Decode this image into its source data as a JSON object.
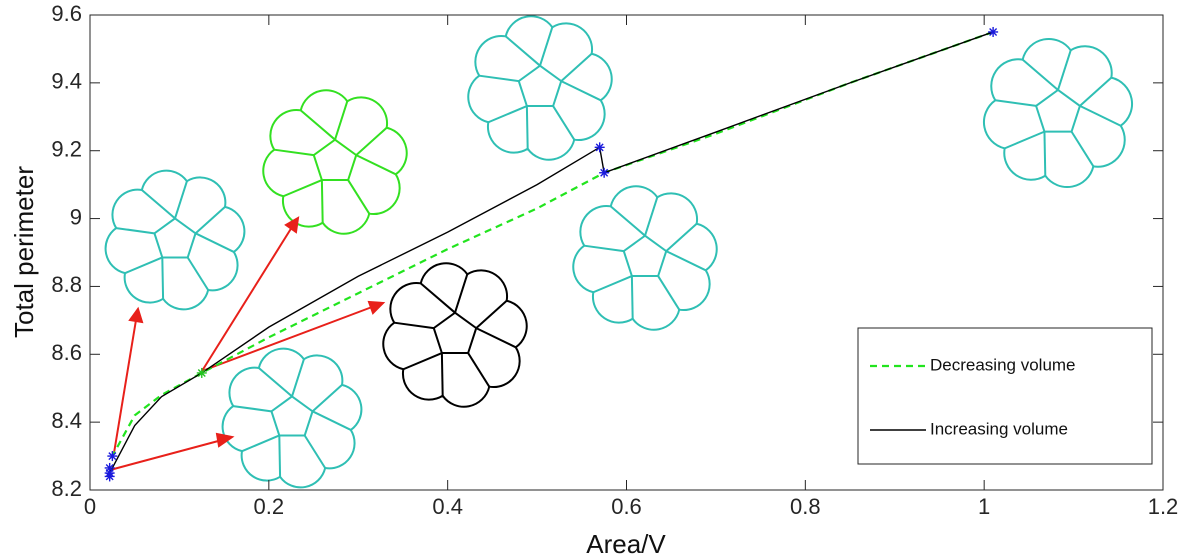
{
  "chart_data": {
    "type": "line",
    "x_label": "Area/V",
    "y_label": "Total perimeter",
    "xlim": [
      0,
      1.2
    ],
    "xticks": [
      0,
      0.2,
      0.4,
      0.6,
      0.8,
      1,
      1.2
    ],
    "ylim": [
      8.2,
      9.6
    ],
    "yticks": [
      8.2,
      8.4,
      8.6,
      8.8,
      9,
      9.2,
      9.4,
      9.6
    ],
    "grid": false,
    "legend": "lower right",
    "series": [
      {
        "name": "Decreasing volume",
        "color": "#22e41e",
        "dash": true,
        "x": [
          1.01,
          0.85,
          0.7,
          0.575,
          0.5,
          0.4,
          0.3,
          0.2,
          0.125,
          0.08,
          0.05,
          0.025
        ],
        "values": [
          9.55,
          9.4,
          9.25,
          9.135,
          9.03,
          8.91,
          8.78,
          8.65,
          8.545,
          8.48,
          8.42,
          8.3
        ]
      },
      {
        "name": "Increasing volume",
        "color": "#000000",
        "dash": false,
        "x": [
          0.022,
          0.05,
          0.08,
          0.125,
          0.2,
          0.3,
          0.4,
          0.5,
          0.57,
          0.575,
          0.7,
          0.85,
          1.01
        ],
        "values": [
          8.25,
          8.39,
          8.475,
          8.545,
          8.68,
          8.83,
          8.96,
          9.1,
          9.21,
          9.135,
          9.255,
          9.4,
          9.55
        ]
      }
    ],
    "markers": [
      {
        "color": "#1a1adc",
        "x": [
          0.022,
          0.022,
          0.022,
          0.025,
          0.57,
          0.575,
          1.01
        ],
        "values": [
          8.265,
          8.25,
          8.24,
          8.3,
          9.21,
          9.135,
          9.55
        ]
      },
      {
        "color": "#22c41e",
        "x": [
          0.125
        ],
        "values": [
          8.545
        ]
      }
    ]
  }
}
